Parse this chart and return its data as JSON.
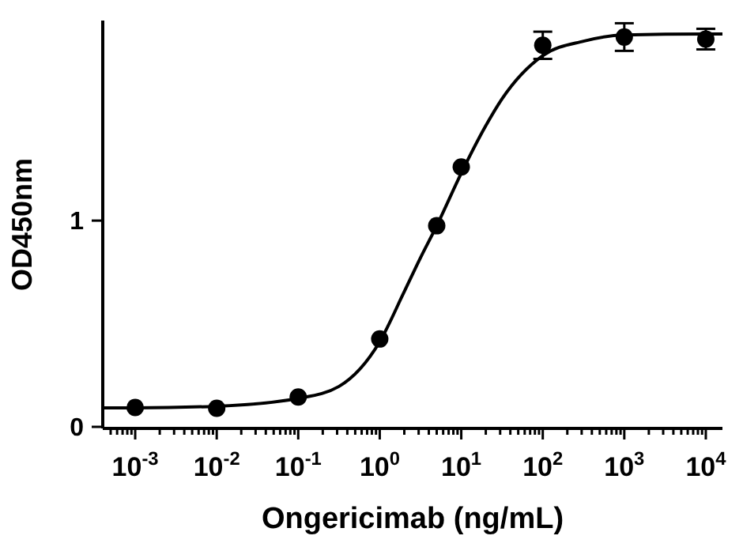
{
  "chart_data": {
    "type": "scatter",
    "xlabel": "Ongericimab (ng/mL)",
    "ylabel": "OD450nm",
    "log": "x",
    "grid": false,
    "marker": "circle",
    "line_style": "solid",
    "xlim": [
      0.0004,
      16000
    ],
    "ylim": [
      0,
      1.97
    ],
    "xticks": [
      {
        "value": 0.0005,
        "label": null
      },
      {
        "value": 0.0006,
        "label": null
      },
      {
        "value": 0.0007,
        "label": null
      },
      {
        "value": 0.0008,
        "label": null
      },
      {
        "value": 0.0009,
        "label": null
      },
      {
        "value": 0.001,
        "label": "10$^{-3}$"
      },
      {
        "value": 0.002,
        "label": null
      },
      {
        "value": 0.003,
        "label": null
      },
      {
        "value": 0.004,
        "label": null
      },
      {
        "value": 0.005,
        "label": null
      },
      {
        "value": 0.006,
        "label": null
      },
      {
        "value": 0.007,
        "label": null
      },
      {
        "value": 0.008,
        "label": null
      },
      {
        "value": 0.009,
        "label": null
      },
      {
        "value": 0.01,
        "label": "10$^{-2}$"
      },
      {
        "value": 0.02,
        "label": null
      },
      {
        "value": 0.03,
        "label": null
      },
      {
        "value": 0.04,
        "label": null
      },
      {
        "value": 0.05,
        "label": null
      },
      {
        "value": 0.06,
        "label": null
      },
      {
        "value": 0.07,
        "label": null
      },
      {
        "value": 0.08,
        "label": null
      },
      {
        "value": 0.09,
        "label": null
      },
      {
        "value": 0.1,
        "label": "10$^{-1}$"
      },
      {
        "value": 0.2,
        "label": null
      },
      {
        "value": 0.3,
        "label": null
      },
      {
        "value": 0.4,
        "label": null
      },
      {
        "value": 0.5,
        "label": null
      },
      {
        "value": 0.6,
        "label": null
      },
      {
        "value": 0.7,
        "label": null
      },
      {
        "value": 0.8,
        "label": null
      },
      {
        "value": 0.9,
        "label": null
      },
      {
        "value": 1,
        "label": "10$^{0}$"
      },
      {
        "value": 2,
        "label": null
      },
      {
        "value": 3,
        "label": null
      },
      {
        "value": 4,
        "label": null
      },
      {
        "value": 5,
        "label": null
      },
      {
        "value": 6,
        "label": null
      },
      {
        "value": 7,
        "label": null
      },
      {
        "value": 8,
        "label": null
      },
      {
        "value": 9,
        "label": null
      },
      {
        "value": 10,
        "label": "10$^{1}$"
      },
      {
        "value": 20,
        "label": null
      },
      {
        "value": 30,
        "label": null
      },
      {
        "value": 40,
        "label": null
      },
      {
        "value": 50,
        "label": null
      },
      {
        "value": 60,
        "label": null
      },
      {
        "value": 70,
        "label": null
      },
      {
        "value": 80,
        "label": null
      },
      {
        "value": 90,
        "label": null
      },
      {
        "value": 100,
        "label": "10$^{2}$"
      },
      {
        "value": 200,
        "label": null
      },
      {
        "value": 300,
        "label": null
      },
      {
        "value": 400,
        "label": null
      },
      {
        "value": 500,
        "label": null
      },
      {
        "value": 600,
        "label": null
      },
      {
        "value": 700,
        "label": null
      },
      {
        "value": 800,
        "label": null
      },
      {
        "value": 900,
        "label": null
      },
      {
        "value": 1000,
        "label": "10$^{3}$"
      },
      {
        "value": 2000,
        "label": null
      },
      {
        "value": 3000,
        "label": null
      },
      {
        "value": 4000,
        "label": null
      },
      {
        "value": 5000,
        "label": null
      },
      {
        "value": 6000,
        "label": null
      },
      {
        "value": 7000,
        "label": null
      },
      {
        "value": 8000,
        "label": null
      },
      {
        "value": 9000,
        "label": null
      },
      {
        "value": 10000,
        "label": "10$^{4}$"
      }
    ],
    "yticks": [
      0,
      1
    ],
    "series": [
      {
        "color": "#000000",
        "x": [
          0.001,
          0.01,
          0.1,
          1,
          5,
          10,
          100,
          1000,
          10000
        ],
        "values": [
          0.094,
          0.09,
          0.145,
          0.426,
          0.975,
          1.26,
          1.85,
          1.89,
          1.88
        ],
        "errors": [
          null,
          null,
          null,
          null,
          null,
          null,
          0.066,
          0.067,
          0.05
        ]
      },
      {
        "type": "line",
        "color": "#000000",
        "marker": "none",
        "x": [
          0.0004,
          0.001,
          0.01,
          0.1,
          0.316,
          1,
          2,
          3.16,
          5,
          10,
          20,
          31.6,
          100,
          316,
          1000,
          10000,
          16000
        ],
        "values": [
          0.092,
          0.092,
          0.1,
          0.138,
          0.196,
          0.413,
          0.656,
          0.82,
          0.975,
          1.23,
          1.46,
          1.59,
          1.8,
          1.87,
          1.9,
          1.905,
          1.905
        ]
      }
    ]
  }
}
